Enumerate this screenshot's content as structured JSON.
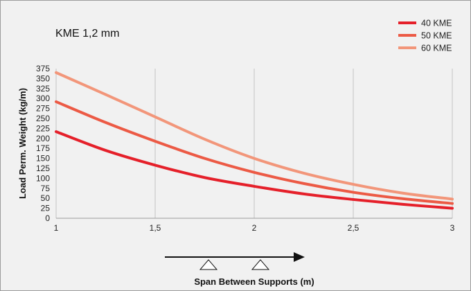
{
  "chart_data": {
    "type": "line",
    "title": "",
    "subtitle": "KME 1,2 mm",
    "xlabel": "Span Between Supports (m)",
    "ylabel": "Load Perm. Weight (kg/m)",
    "xlim": [
      1,
      3
    ],
    "ylim": [
      0,
      375
    ],
    "x_ticks": [
      1,
      1.5,
      2,
      2.5,
      3
    ],
    "x_tick_labels": [
      "1",
      "1,5",
      "2",
      "2,5",
      "3"
    ],
    "y_ticks": [
      0,
      25,
      50,
      75,
      100,
      125,
      150,
      175,
      200,
      225,
      250,
      275,
      300,
      325,
      350,
      375
    ],
    "y_tick_labels": [
      "0",
      "25",
      "50",
      "75",
      "100",
      "125",
      "150",
      "175",
      "200",
      "225",
      "250",
      "275",
      "300",
      "325",
      "350",
      "375"
    ],
    "grid": "vertical",
    "legend_position": "top-right",
    "x": [
      1,
      1.25,
      1.5,
      1.75,
      2,
      2.25,
      2.5,
      2.75,
      3
    ],
    "series": [
      {
        "name": "40 KME",
        "color": "#e5202a",
        "values": [
          217,
          170,
          133,
          102,
          80,
          61,
          47,
          35,
          25
        ]
      },
      {
        "name": "50 KME",
        "color": "#ec5a45",
        "values": [
          292,
          240,
          193,
          150,
          115,
          87,
          65,
          49,
          37
        ]
      },
      {
        "name": "60 KME",
        "color": "#f2967a",
        "values": [
          365,
          310,
          254,
          198,
          150,
          113,
          85,
          63,
          48
        ]
      }
    ]
  }
}
